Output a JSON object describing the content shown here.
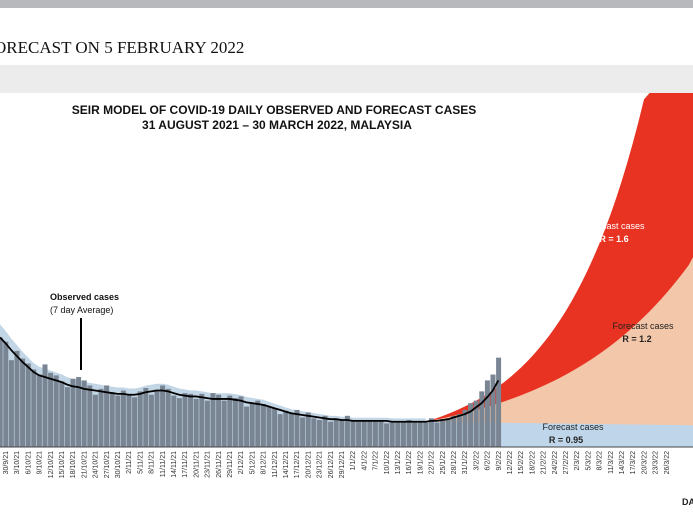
{
  "page": {
    "header_title": "ORECAST ON 5 FEBRUARY 2022"
  },
  "chart_data": {
    "type": "area",
    "title_line1": "SEIR MODEL OF COVID-19 DAILY OBSERVED AND FORECAST CASES",
    "title_line2": "31 AUGUST 2021 – 30 MARCH 2022, MALAYSIA",
    "xlabel": "DA",
    "ylabel": "",
    "observed_label_line1": "Observed cases",
    "observed_label_line2": "(7 day Average)",
    "x_dates": [
      "30/9/21",
      "3/10/21",
      "6/10/21",
      "9/10/21",
      "12/10/21",
      "15/10/21",
      "18/10/21",
      "21/10/21",
      "24/10/21",
      "27/10/21",
      "30/10/21",
      "2/11/21",
      "5/11/21",
      "8/11/21",
      "11/11/21",
      "14/11/21",
      "17/11/21",
      "20/11/21",
      "23/11/21",
      "26/11/21",
      "29/11/21",
      "2/12/21",
      "5/12/21",
      "8/12/21",
      "11/12/21",
      "14/12/21",
      "17/12/21",
      "20/12/21",
      "23/12/21",
      "26/12/21",
      "29/12/21",
      "1/1/22",
      "4/1/22",
      "7/1/22",
      "10/1/22",
      "13/1/22",
      "16/1/22",
      "19/1/22",
      "22/1/22",
      "25/1/22",
      "28/1/22",
      "31/1/22",
      "3/2/22",
      "6/2/22",
      "9/2/22",
      "12/2/22",
      "15/2/22",
      "18/2/22",
      "21/2/22",
      "24/2/22",
      "27/2/22",
      "2/3/22",
      "5/3/22",
      "8/3/22",
      "11/3/22",
      "14/3/22",
      "17/3/22",
      "20/3/22",
      "23/3/22",
      "26/3/22"
    ],
    "observed_daily": [
      13,
      12.5,
      10.3,
      11.4,
      10.5,
      9.9,
      9.2,
      8.6,
      9.8,
      8.8,
      8.5,
      7.8,
      7.1,
      8.1,
      8.3,
      7.9,
      7.3,
      6.2,
      6.9,
      7.3,
      6.5,
      6.1,
      6.7,
      6.3,
      5.9,
      6.6,
      7,
      6.2,
      6.8,
      7.3,
      6.9,
      6.1,
      5.8,
      6.4,
      6.3,
      5.7,
      6.3,
      5.5,
      6.4,
      6.2,
      5.5,
      6.1,
      5.8,
      6,
      4.8,
      5.2,
      5.5,
      5.1,
      4.8,
      4.6,
      3.9,
      4.3,
      4,
      4.4,
      3.5,
      4.1,
      3.4,
      3.2,
      3.7,
      3,
      3.4,
      3.2,
      3.7,
      3.1,
      3,
      3.1,
      3.2,
      3.1,
      3.1,
      2.8,
      3,
      2.9,
      3,
      3.2,
      2.9,
      3,
      2.9,
      3.4,
      2.9,
      3.3,
      3.4,
      3.7,
      3.9,
      4.4,
      5.2,
      5.5,
      6.6,
      7.9,
      8.6,
      10.6
    ],
    "observed_avg": [
      13,
      12.3,
      11.5,
      10.8,
      10.1,
      9.5,
      8.9,
      8.5,
      8.3,
      8.1,
      7.9,
      7.7,
      7.4,
      7.2,
      7.1,
      6.9,
      6.8,
      6.7,
      6.6,
      6.5,
      6.4,
      6.3,
      6.3,
      6.2,
      6.2,
      6.3,
      6.5,
      6.6,
      6.7,
      6.7,
      6.6,
      6.4,
      6.2,
      6.1,
      6,
      6,
      5.9,
      5.8,
      5.7,
      5.7,
      5.7,
      5.7,
      5.6,
      5.5,
      5.3,
      5.2,
      5.1,
      5,
      4.8,
      4.6,
      4.4,
      4.2,
      4,
      3.9,
      3.8,
      3.7,
      3.6,
      3.5,
      3.4,
      3.3,
      3.3,
      3.2,
      3.2,
      3.1,
      3.1,
      3.1,
      3.1,
      3.1,
      3.1,
      3.1,
      3,
      3,
      3,
      3,
      3,
      3,
      3,
      3.1,
      3.1,
      3.2,
      3.3,
      3.5,
      3.7,
      3.9,
      4.2,
      4.7,
      5.2,
      5.9,
      6.7,
      7.9
    ],
    "forecast_start_index": 76,
    "series": [
      {
        "name": "Forecast cases R = 1.6",
        "label_line1": "Forecast cases",
        "label_line2": "R = 1.6",
        "color": "#e83323",
        "growth": 0.064
      },
      {
        "name": "Forecast cases R = 1.2",
        "label_line1": "Forecast cases",
        "label_line2": "R = 1.2",
        "color": "#f3c7a9",
        "growth": 0.04
      },
      {
        "name": "Forecast cases R = 0.95",
        "label_line1": "Forecast cases",
        "label_line2": "R = 0.95",
        "color": "#bfd6ea",
        "growth": -0.003
      }
    ],
    "ylim": [
      0,
      42
    ],
    "colors": {
      "observed_bar": "#7a8594",
      "observed_line": "#000000",
      "observed_shade": "#c3d6e6",
      "forecast_high": "#e83323",
      "forecast_mid": "#f3c7a9",
      "forecast_low": "#bfd6ea"
    }
  }
}
